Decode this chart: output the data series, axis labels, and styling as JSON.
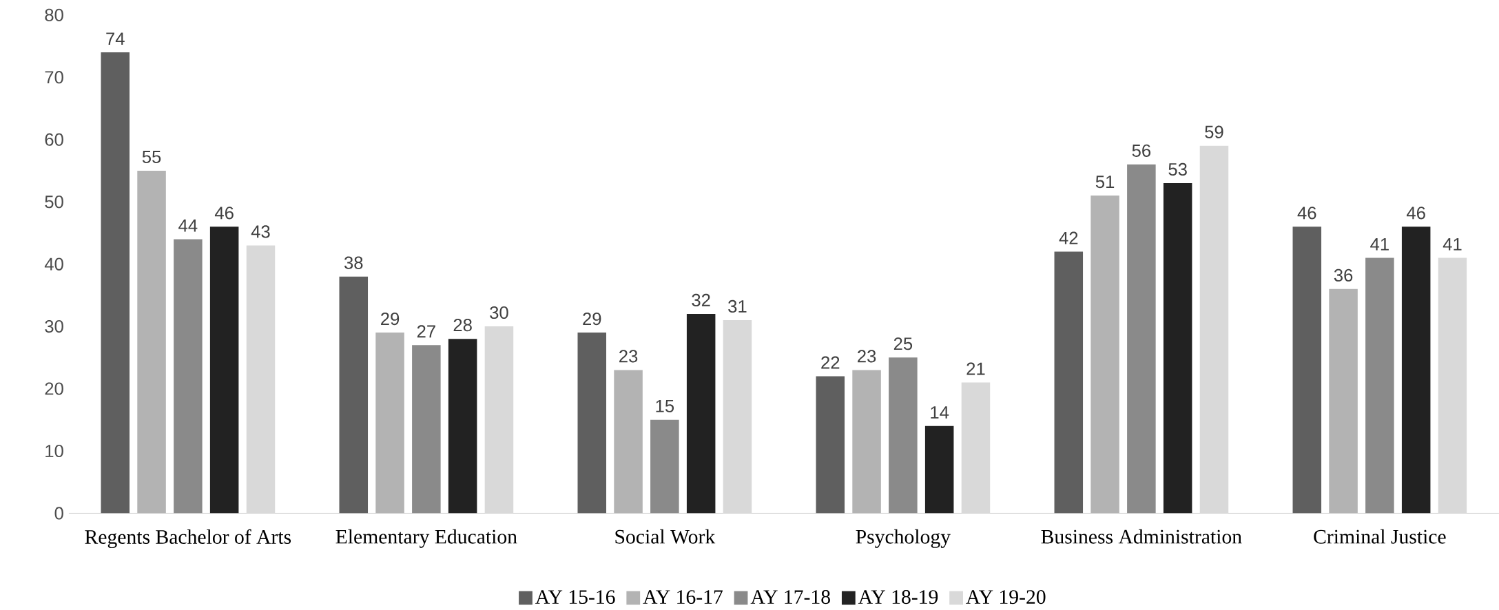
{
  "chart_data": {
    "type": "bar",
    "categories": [
      "Regents Bachelor of Arts",
      "Elementary Education",
      "Social Work",
      "Psychology",
      "Business Administration",
      "Criminal Justice"
    ],
    "series": [
      {
        "name": "AY 15-16",
        "color": "#5f5f5f",
        "values": [
          74,
          38,
          29,
          22,
          42,
          46
        ]
      },
      {
        "name": "AY 16-17",
        "color": "#b3b3b3",
        "values": [
          55,
          29,
          23,
          23,
          51,
          36
        ]
      },
      {
        "name": "AY 17-18",
        "color": "#8a8a8a",
        "values": [
          44,
          27,
          15,
          25,
          56,
          41
        ]
      },
      {
        "name": "AY 18-19",
        "color": "#222222",
        "values": [
          46,
          28,
          32,
          14,
          53,
          46
        ]
      },
      {
        "name": "AY 19-20",
        "color": "#d9d9d9",
        "values": [
          43,
          30,
          31,
          21,
          59,
          41
        ]
      }
    ],
    "ylim": [
      0,
      80
    ],
    "yticks": [
      0,
      10,
      20,
      30,
      40,
      50,
      60,
      70,
      80
    ],
    "data_labels": true,
    "legend": "bottom"
  }
}
